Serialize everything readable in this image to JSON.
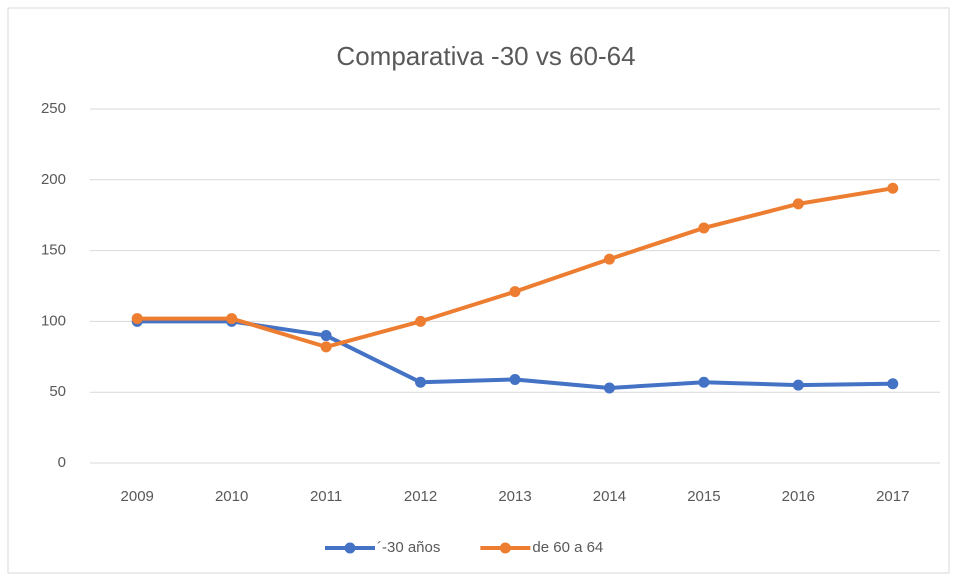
{
  "chart_data": {
    "type": "line",
    "title": "Comparativa -30 vs 60-64",
    "categories": [
      "2009",
      "2010",
      "2011",
      "2012",
      "2013",
      "2014",
      "2015",
      "2016",
      "2017"
    ],
    "series": [
      {
        "name": "´-30 años",
        "color": "#4472c4",
        "values": [
          100,
          100,
          90,
          57,
          59,
          53,
          57,
          55,
          56
        ]
      },
      {
        "name": "de 60 a 64",
        "color": "#ed7d31",
        "values": [
          102,
          102,
          82,
          100,
          121,
          144,
          166,
          183,
          194
        ]
      }
    ],
    "ylim": [
      0,
      250
    ],
    "yticks": [
      0,
      50,
      100,
      150,
      200,
      250
    ],
    "grid": true,
    "legend": "bottom"
  }
}
